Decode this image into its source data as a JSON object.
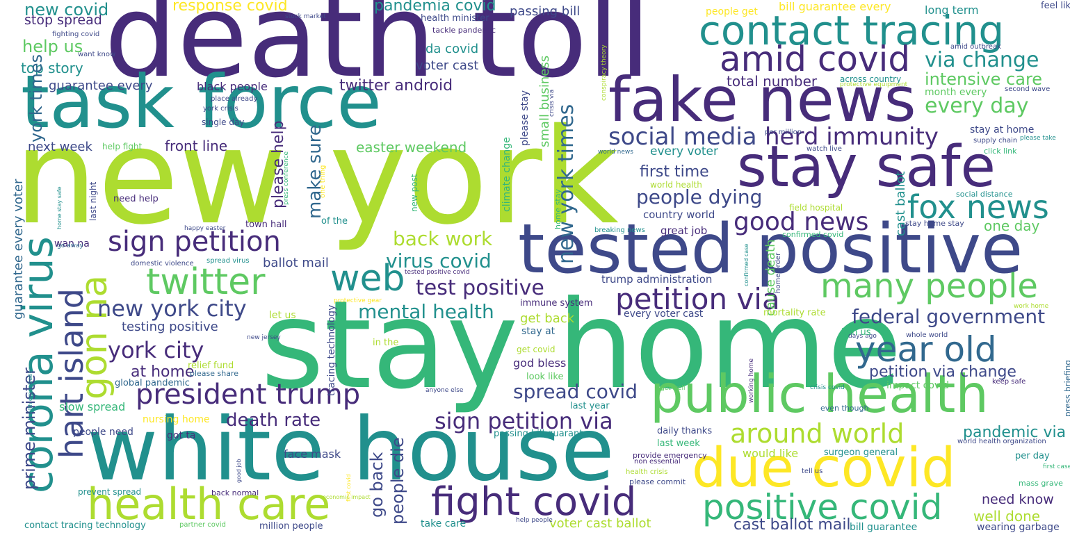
{
  "colors": {
    "background": "#ffffff",
    "dark-purple": "#472c7a",
    "indigo": "#3e4989",
    "slate-blue": "#31688e",
    "teal": "#21908d",
    "sea-green": "#35b779",
    "green": "#5ec962",
    "lime": "#addc30",
    "yellow": "#fde725"
  },
  "words": [
    "death toll",
    "new york",
    "stay home",
    "task force",
    "white house",
    "tested positive",
    "fake news",
    "stay safe",
    "contact tracing",
    "public health",
    "due covid",
    "corona virus",
    "health care",
    "fight covid",
    "amid covid",
    "twitter",
    "web",
    "sign petition",
    "president trump",
    "year old",
    "many people",
    "fox news",
    "positive covid",
    "gon na",
    "hart island",
    "petition via",
    "social media",
    "herd immunity",
    "good news",
    "around world",
    "new york times",
    "people dying",
    "back work",
    "virus covid",
    "test positive",
    "new york city",
    "york city",
    "mental health",
    "federal government",
    "sign petition via",
    "spread covid",
    "death rate",
    "via change",
    "every day",
    "intensive care",
    "new covid",
    "response covid",
    "pandemia covid",
    "passing bill",
    "stop spread",
    "help us",
    "top story",
    "york times",
    "twitter android",
    "make sure",
    "please help",
    "easter weekend",
    "front line",
    "next week",
    "first time",
    "petition via change",
    "pandemic via",
    "one day",
    "well done",
    "need know",
    "cast ballot mail",
    "voter cast ballot",
    "go back",
    "people die",
    "prime minister",
    "guarantee every voter",
    "at home",
    "testing positive",
    "ballot mail",
    "get back",
    "god bless",
    "face mask",
    "would like",
    "da covid",
    "voter cast",
    "total number",
    "bill guarantee every",
    "people get",
    "long term",
    "feel like",
    "guarantee every",
    "black people",
    "every voter",
    "country world",
    "great job",
    "trump administration",
    "cause death",
    "cast ballot",
    "small business",
    "please stay",
    "climate change",
    "tracing technology",
    "slow spread",
    "nursing home",
    "people need",
    "got ta",
    "stay at home",
    "health minister",
    "tackle pandemic",
    "stock market",
    "fighting covid",
    "want know",
    "place already",
    "york crisis",
    "single day",
    "help fight",
    "last night",
    "need help",
    "wan na",
    "town hall",
    "of the",
    "new post",
    "home stay",
    "immune system",
    "let us",
    "every voter cast",
    "world health",
    "field hospital",
    "confirmed covid",
    "across country",
    "month every",
    "second wave",
    "supply chain",
    "please take",
    "click link",
    "watch live",
    "per million",
    "amid outbreak",
    "stay home stay",
    "social distance",
    "work home",
    "days ago",
    "whole world",
    "join us",
    "impact covid",
    "keep safe",
    "press briefing",
    "first case",
    "mass grave",
    "wearing garbage",
    "bill guarantee",
    "per day",
    "world health organization",
    "surgeon general",
    "tell us",
    "last week",
    "daily thanks",
    "passing bill guarantee",
    "last year",
    "look like",
    "get covid",
    "stay at",
    "in the",
    "relief fund",
    "please share",
    "global pandemic",
    "anyone else",
    "even though",
    "crisis covid",
    "get well",
    "working home",
    "mortality rate",
    "protective gear",
    "tested positive covid",
    "spread virus",
    "domestic violence",
    "happy easter",
    "breaking news",
    "press conference",
    "one thing",
    "conspiracy theory",
    "protective equipment",
    "crisis via",
    "world news",
    "new jersey",
    "health organization",
    "go away",
    "home stay safe",
    "provide emergency",
    "non essential",
    "health crisis",
    "please commit",
    "home order",
    "confirmed case",
    "economic impact",
    "first covid",
    "good job",
    "back normal",
    "prevent spread",
    "contact tracing technology",
    "partner covid",
    "million people",
    "take care",
    "help people"
  ]
}
